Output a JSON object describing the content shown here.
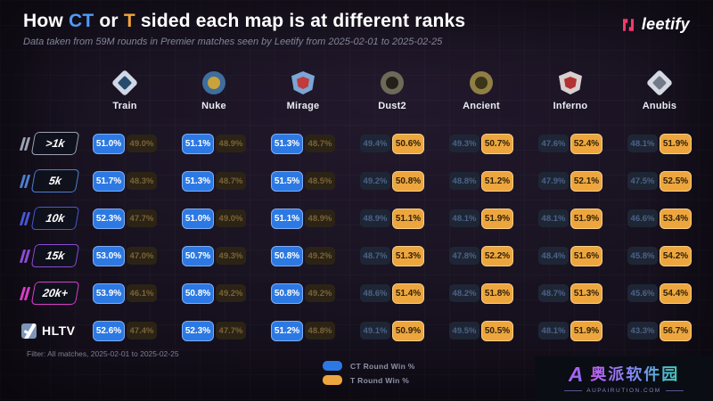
{
  "header": {
    "title_prefix": "How ",
    "title_ct": "CT",
    "title_mid": " or ",
    "title_t": "T",
    "title_suffix": " sided each map is at different ranks",
    "subtitle": "Data taken from 59M rounds in Premier matches seen by Leetify from 2025-02-01 to 2025-02-25",
    "brand": "leetify"
  },
  "colors": {
    "ct_win_bg": "#2C79E3",
    "ct_win_border": "#7FADF5",
    "t_win_bg": "#EDA63E",
    "t_win_border": "#F7CE86",
    "ct_dim_text": "#4C6288",
    "t_dim_text": "#7B6336",
    "brand_pink": "#F5396B",
    "title_ct_blue": "#4E9BF5",
    "title_t_orange": "#F2A43E"
  },
  "maps": [
    {
      "name": "Train",
      "icon": "train-map-icon",
      "shape": "diamond",
      "c1": "#CFD8E4",
      "c2": "#274A6E"
    },
    {
      "name": "Nuke",
      "icon": "nuke-map-icon",
      "shape": "circle",
      "c1": "#3F6D9E",
      "c2": "#C9A23C"
    },
    {
      "name": "Mirage",
      "icon": "mirage-map-icon",
      "shape": "shield",
      "c1": "#7BA6D6",
      "c2": "#C23A3A"
    },
    {
      "name": "Dust2",
      "icon": "dust2-map-icon",
      "shape": "circle",
      "c1": "#6E6A58",
      "c2": "#23201A"
    },
    {
      "name": "Ancient",
      "icon": "ancient-map-icon",
      "shape": "circle",
      "c1": "#8F7F45",
      "c2": "#3A3418"
    },
    {
      "name": "Inferno",
      "icon": "inferno-map-icon",
      "shape": "shield",
      "c1": "#D8D0D0",
      "c2": "#B23131"
    },
    {
      "name": "Anubis",
      "icon": "anubis-map-icon",
      "shape": "diamond",
      "c1": "#D5DAE2",
      "c2": "#747B88"
    }
  ],
  "ranks": [
    {
      "label": ">1k",
      "type": "badge",
      "color": "#9BA3B4"
    },
    {
      "label": "5k",
      "type": "badge",
      "color": "#4D7FD0"
    },
    {
      "label": "10k",
      "type": "badge",
      "color": "#4956D6"
    },
    {
      "label": "15k",
      "type": "badge",
      "color": "#8B4BD8"
    },
    {
      "label": "20k+",
      "type": "badge",
      "color": "#D93EC8"
    },
    {
      "label": "HLTV",
      "type": "hltv",
      "color": "#7E95B8"
    }
  ],
  "chart_data": {
    "type": "table",
    "title": "How CT or T sided each map is at different ranks",
    "subtitle": "Data taken from 59M rounds in Premier matches seen by Leetify from 2025-02-01 to 2025-02-25",
    "columns": [
      "Train",
      "Nuke",
      "Mirage",
      "Dust2",
      "Ancient",
      "Inferno",
      "Anubis"
    ],
    "rows": [
      ">1k",
      "5k",
      "10k",
      "15k",
      "20k+",
      "HLTV"
    ],
    "unit": "%",
    "series": [
      {
        "rank": ">1k",
        "ct": [
          51.0,
          51.1,
          51.3,
          49.4,
          49.3,
          47.6,
          48.1
        ],
        "t": [
          49.0,
          48.9,
          48.7,
          50.6,
          50.7,
          52.4,
          51.9
        ]
      },
      {
        "rank": "5k",
        "ct": [
          51.7,
          51.3,
          51.5,
          49.2,
          48.8,
          47.9,
          47.5
        ],
        "t": [
          48.3,
          48.7,
          48.5,
          50.8,
          51.2,
          52.1,
          52.5
        ]
      },
      {
        "rank": "10k",
        "ct": [
          52.3,
          51.0,
          51.1,
          48.9,
          48.1,
          48.1,
          46.6
        ],
        "t": [
          47.7,
          49.0,
          48.9,
          51.1,
          51.9,
          51.9,
          53.4
        ]
      },
      {
        "rank": "15k",
        "ct": [
          53.0,
          50.7,
          50.8,
          48.7,
          47.8,
          48.4,
          45.8
        ],
        "t": [
          47.0,
          49.3,
          49.2,
          51.3,
          52.2,
          51.6,
          54.2
        ]
      },
      {
        "rank": "20k+",
        "ct": [
          53.9,
          50.8,
          50.8,
          48.6,
          48.2,
          48.7,
          45.6
        ],
        "t": [
          46.1,
          49.2,
          49.2,
          51.4,
          51.8,
          51.3,
          54.4
        ]
      },
      {
        "rank": "HLTV",
        "ct": [
          52.6,
          52.3,
          51.2,
          49.1,
          49.5,
          48.1,
          43.3
        ],
        "t": [
          47.4,
          47.7,
          48.8,
          50.9,
          50.5,
          51.9,
          56.7
        ]
      }
    ]
  },
  "legend": [
    {
      "label": "CT Round Win %",
      "color": "#2C79E3"
    },
    {
      "label": "T Round Win %",
      "color": "#EDA63E"
    }
  ],
  "footer": {
    "filter": "Filter: All matches, 2025-02-01 to 2025-02-25"
  },
  "watermark": {
    "logo_letter": "A",
    "name": "奥派软件园",
    "domain": "AUPAIRUTION.COM"
  }
}
